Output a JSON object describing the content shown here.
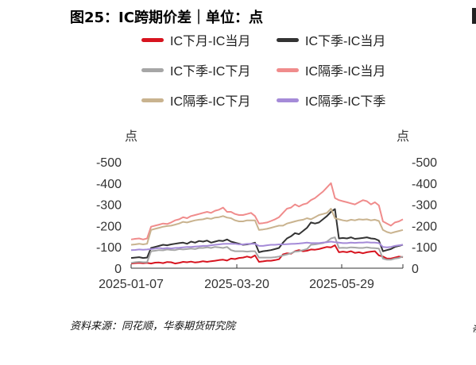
{
  "title": "图25：IC跨期价差｜单位：点",
  "source": "资料来源：同花顺，华泰期货研究院",
  "edge_glyph": "资",
  "chart_data": {
    "type": "line",
    "title": "图25：IC跨期价差｜单位：点",
    "ylabel_left": "点",
    "ylabel_right": "点",
    "ylim": [
      -500,
      0
    ],
    "yticks": [
      0,
      -100,
      -200,
      -300,
      -400,
      -500
    ],
    "ytick_labels": [
      "0",
      "-100",
      "-200",
      "-300",
      "-400",
      "-500"
    ],
    "xtick_labels": [
      "2025-01-07",
      "2025-03-20",
      "2025-05-29"
    ],
    "grid": false,
    "legend_position": "top",
    "series": [
      {
        "name": "IC下月-IC当月",
        "color": "#d7141f",
        "values": [
          -22,
          -24,
          -25,
          -23,
          -25,
          -22,
          -26,
          -27,
          -24,
          -29,
          -28,
          -22,
          -25,
          -30,
          -28,
          -31,
          -27,
          -29,
          -33,
          -30,
          -33,
          -35,
          -38,
          -40,
          -36,
          -45,
          -43,
          -48,
          -50,
          -55,
          -50,
          -60,
          -30,
          -32,
          -35,
          -35,
          -38,
          -42,
          -65,
          -70,
          -68,
          -80,
          -85,
          -80,
          -82,
          -88,
          -87,
          -90,
          -95,
          -100,
          -98,
          -108,
          -75,
          -78,
          -75,
          -80,
          -72,
          -75,
          -70,
          -75,
          -78,
          -80,
          -60,
          -55,
          -45,
          -45,
          -50,
          -55,
          -52
        ]
      },
      {
        "name": "IC下季-IC当月",
        "color": "#333333",
        "values": [
          -48,
          -50,
          -52,
          -48,
          -50,
          -95,
          -100,
          -105,
          -110,
          -108,
          -112,
          -115,
          -118,
          -120,
          -115,
          -125,
          -120,
          -128,
          -125,
          -130,
          -120,
          -125,
          -130,
          -128,
          -135,
          -125,
          -120,
          -115,
          -110,
          -112,
          -115,
          -120,
          -75,
          -80,
          -82,
          -85,
          -90,
          -95,
          -120,
          -140,
          -150,
          -165,
          -160,
          -175,
          -190,
          -215,
          -210,
          -215,
          -230,
          -245,
          -265,
          -278,
          -140,
          -142,
          -140,
          -145,
          -138,
          -140,
          -142,
          -145,
          -140,
          -138,
          -130,
          -80,
          -85,
          -90,
          -100,
          -105,
          -110
        ]
      },
      {
        "name": "IC下季-IC下月",
        "color": "#a6a6a6",
        "values": [
          -25,
          -28,
          -30,
          -28,
          -28,
          -80,
          -82,
          -85,
          -84,
          -88,
          -86,
          -85,
          -90,
          -88,
          -90,
          -92,
          -90,
          -95,
          -95,
          -98,
          -95,
          -100,
          -98,
          -95,
          -100,
          -85,
          -80,
          -80,
          -80,
          -78,
          -80,
          -80,
          -50,
          -50,
          -50,
          -50,
          -52,
          -55,
          -60,
          -65,
          -70,
          -78,
          -80,
          -85,
          -90,
          -110,
          -112,
          -115,
          -118,
          -125,
          -140,
          -145,
          -95,
          -96,
          -95,
          -98,
          -97,
          -95,
          -95,
          -98,
          -95,
          -94,
          -92,
          -45,
          -40,
          -40,
          -45,
          -48,
          -55
        ]
      },
      {
        "name": "IC隔季-IC当月",
        "color": "#f08c8c",
        "values": [
          -135,
          -138,
          -140,
          -135,
          -140,
          -195,
          -200,
          -205,
          -210,
          -208,
          -215,
          -225,
          -230,
          -240,
          -235,
          -245,
          -250,
          -255,
          -260,
          -265,
          -260,
          -270,
          -275,
          -285,
          -265,
          -265,
          -255,
          -250,
          -250,
          -255,
          -260,
          -245,
          -210,
          -212,
          -215,
          -222,
          -230,
          -240,
          -260,
          -280,
          -285,
          -300,
          -290,
          -300,
          -305,
          -320,
          -330,
          -345,
          -360,
          -380,
          -400,
          -330,
          -320,
          -315,
          -310,
          -305,
          -300,
          -310,
          -320,
          -315,
          -300,
          -310,
          -295,
          -220,
          -210,
          -200,
          -215,
          -220,
          -230
        ]
      },
      {
        "name": "IC隔季-IC下月",
        "color": "#c9b38f",
        "values": [
          -110,
          -112,
          -115,
          -112,
          -115,
          -180,
          -185,
          -190,
          -195,
          -198,
          -200,
          -205,
          -210,
          -218,
          -215,
          -220,
          -225,
          -228,
          -230,
          -235,
          -232,
          -238,
          -240,
          -245,
          -238,
          -235,
          -225,
          -220,
          -220,
          -225,
          -225,
          -225,
          -180,
          -182,
          -185,
          -190,
          -195,
          -200,
          -200,
          -210,
          -215,
          -220,
          -225,
          -228,
          -235,
          -230,
          -240,
          -250,
          -255,
          -260,
          -280,
          -235,
          -230,
          -225,
          -222,
          -228,
          -225,
          -230,
          -228,
          -230,
          -225,
          -228,
          -222,
          -180,
          -170,
          -165,
          -170,
          -175,
          -180
        ]
      },
      {
        "name": "IC隔季-IC下季",
        "color": "#a58bd8",
        "values": [
          -85,
          -86,
          -88,
          -87,
          -88,
          -90,
          -92,
          -95,
          -92,
          -95,
          -93,
          -95,
          -96,
          -98,
          -100,
          -100,
          -102,
          -103,
          -105,
          -105,
          -108,
          -110,
          -112,
          -114,
          -115,
          -115,
          -115,
          -112,
          -112,
          -114,
          -115,
          -115,
          -105,
          -105,
          -108,
          -110,
          -110,
          -112,
          -112,
          -113,
          -114,
          -115,
          -116,
          -118,
          -120,
          -118,
          -118,
          -118,
          -120,
          -122,
          -125,
          -122,
          -120,
          -118,
          -118,
          -120,
          -119,
          -120,
          -120,
          -122,
          -120,
          -120,
          -118,
          -100,
          -98,
          -100,
          -105,
          -108,
          -110
        ]
      }
    ]
  }
}
